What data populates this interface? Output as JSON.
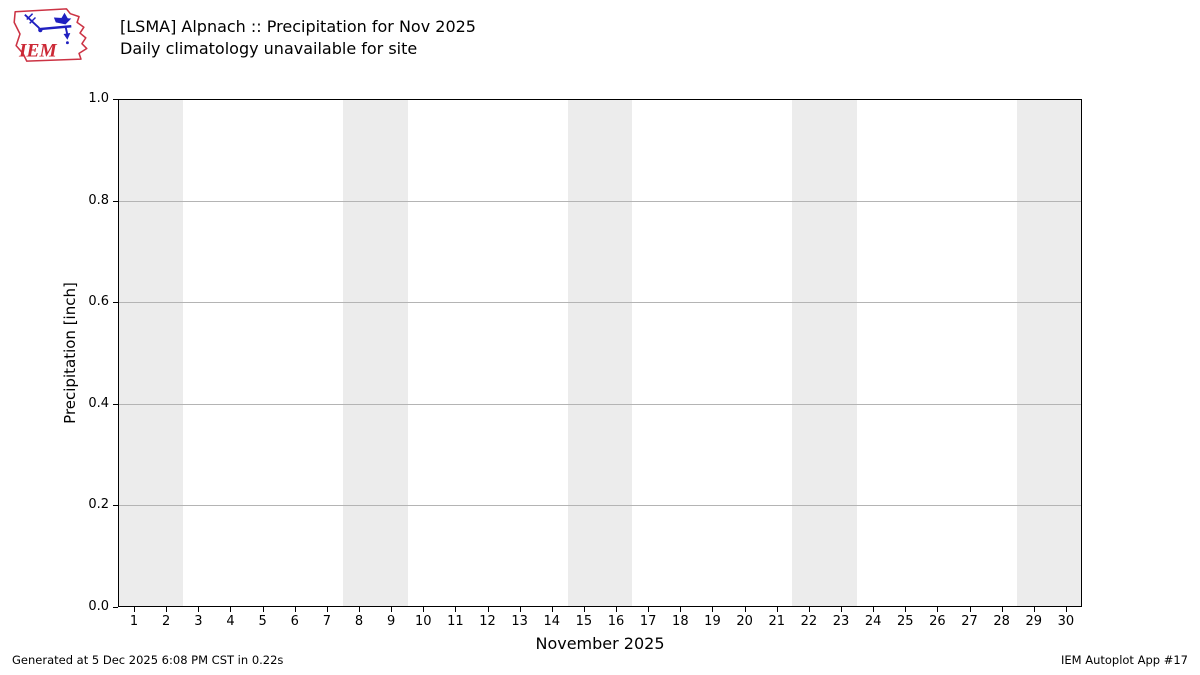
{
  "logo": {
    "label": "IEM"
  },
  "header": {
    "title": "[LSMA] Alpnach :: Precipitation for Nov 2025",
    "subtitle": "Daily climatology unavailable for site"
  },
  "footer": {
    "generated": "Generated at 5 Dec 2025 6:08 PM CST in 0.22s",
    "app": "IEM Autoplot App #17"
  },
  "chart_data": {
    "type": "bar",
    "title": "[LSMA] Alpnach :: Precipitation for Nov 2025",
    "subtitle": "Daily climatology unavailable for site",
    "xlabel": "November 2025",
    "ylabel": "Precipitation [inch]",
    "xlim": [
      0.5,
      30.5
    ],
    "ylim": [
      0.0,
      1.0
    ],
    "x_ticks": [
      1,
      2,
      3,
      4,
      5,
      6,
      7,
      8,
      9,
      10,
      11,
      12,
      13,
      14,
      15,
      16,
      17,
      18,
      19,
      20,
      21,
      22,
      23,
      24,
      25,
      26,
      27,
      28,
      29,
      30
    ],
    "y_ticks": [
      0.0,
      0.2,
      0.4,
      0.6,
      0.8,
      1.0
    ],
    "series": [],
    "grid": "horizontal",
    "legend": "none",
    "weekend_shading_day_ranges": [
      [
        0.5,
        2.5
      ],
      [
        7.5,
        9.5
      ],
      [
        14.5,
        16.5
      ],
      [
        21.5,
        23.5
      ],
      [
        28.5,
        30.5
      ]
    ],
    "colors": {
      "weekend_band": "#ececec",
      "gridline": "#b4b4b4",
      "axis": "#000000",
      "logo_red": "#cc3344",
      "logo_blue": "#2020c0"
    }
  }
}
